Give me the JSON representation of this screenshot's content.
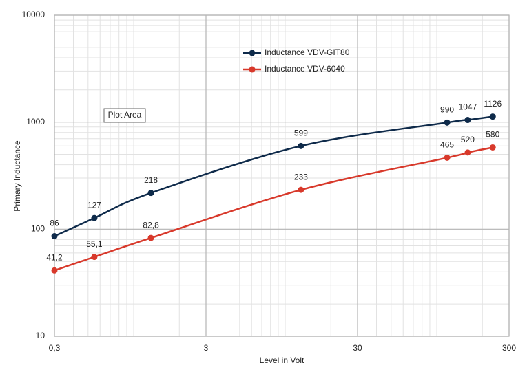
{
  "chart_data": {
    "type": "line",
    "x_label": "Level in Volt",
    "y_label": "Primary Inductance",
    "annotation": "Plot Area",
    "log_x": true,
    "log_y": true,
    "grid": true,
    "minor_grid": true,
    "legend": "top-center",
    "x": [
      0.3,
      0.55,
      1.3,
      12.7,
      117,
      160,
      234
    ],
    "xlim": [
      0.3,
      300
    ],
    "xticks": [
      {
        "value": 0.3,
        "label": "0,3"
      },
      3,
      30,
      300
    ],
    "ylim": [
      10,
      10000
    ],
    "yticks": [
      10,
      100,
      1000,
      10000
    ],
    "series": [
      {
        "name": "Inductance VDV-GIT80",
        "color": "#0e2a4a",
        "values": [
          86,
          127,
          218,
          599,
          990,
          1047,
          1126
        ]
      },
      {
        "name": "Inductance VDV-6040",
        "color": "#d8392b",
        "values": [
          41.2,
          55.1,
          82.8,
          233,
          465,
          520,
          580
        ],
        "value_labels": [
          "41,2",
          "55,1",
          "82,8",
          "233",
          "465",
          "520",
          "580"
        ]
      }
    ]
  }
}
